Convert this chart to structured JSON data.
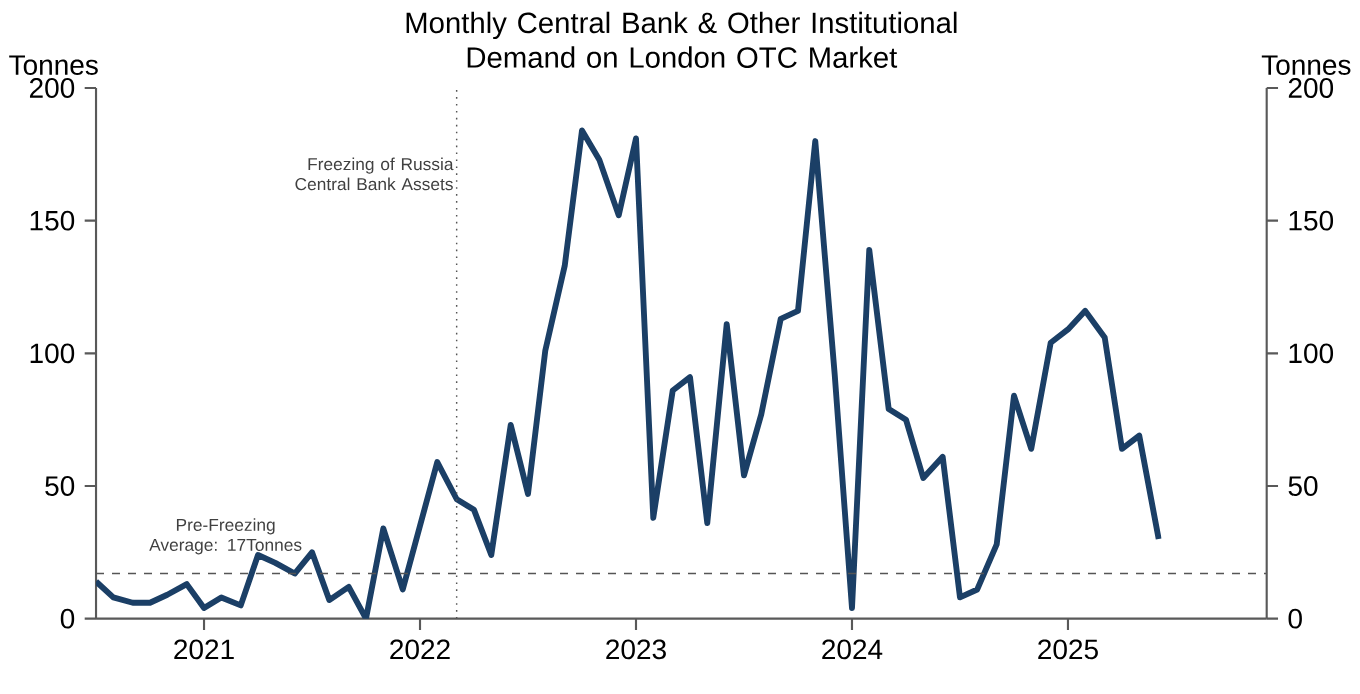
{
  "chart_data": {
    "type": "line",
    "title": "Monthly Central Bank & Other Institutional Demand on London OTC Market",
    "ylabel": "Tonnes",
    "y2label": "Tonnes",
    "x": [
      "2020-07",
      "2020-08",
      "2020-09",
      "2020-10",
      "2020-11",
      "2020-12",
      "2021-01",
      "2021-02",
      "2021-03",
      "2021-04",
      "2021-05",
      "2021-06",
      "2021-07",
      "2021-08",
      "2021-09",
      "2021-10",
      "2021-11",
      "2021-12",
      "2022-01",
      "2022-02",
      "2022-03",
      "2022-04",
      "2022-05",
      "2022-06",
      "2022-07",
      "2022-08",
      "2022-09",
      "2022-10",
      "2022-11",
      "2022-12",
      "2023-01",
      "2023-02",
      "2023-03",
      "2023-04",
      "2023-05",
      "2023-06",
      "2023-07",
      "2023-08",
      "2023-09",
      "2023-10",
      "2023-11",
      "2023-12",
      "2024-01",
      "2024-02",
      "2024-03",
      "2024-04",
      "2024-05",
      "2024-06",
      "2024-07",
      "2024-08",
      "2024-09",
      "2024-10",
      "2024-11",
      "2024-12",
      "2025-01",
      "2025-02",
      "2025-03",
      "2025-04",
      "2025-05",
      "2025-06"
    ],
    "series": [
      {
        "color": "#1b3f66",
        "values": [
          14,
          8,
          6,
          6,
          9,
          13,
          4,
          8,
          5,
          24,
          21,
          17,
          25,
          7,
          12,
          0,
          34,
          11,
          35,
          59,
          45,
          41,
          24,
          73,
          47,
          101,
          133,
          184,
          173,
          152,
          181,
          38,
          86,
          91,
          36,
          111,
          54,
          77,
          113,
          116,
          180,
          92,
          4,
          139,
          79,
          75,
          53,
          61,
          8,
          11,
          28,
          84,
          64,
          104,
          109,
          116,
          106,
          64,
          69,
          30
        ]
      }
    ],
    "xlim": [
      "2020-07",
      "2025-12"
    ],
    "xticks": [
      "2021",
      "2022",
      "2023",
      "2024",
      "2025"
    ],
    "ylim": [
      0,
      200
    ],
    "yticks": [
      0,
      50,
      100,
      150,
      200
    ],
    "y2lim": [
      0,
      200
    ],
    "y2ticks": [
      0,
      50,
      100,
      150,
      200
    ],
    "ref_lines": [
      {
        "axis": "x",
        "value": "2022-03",
        "label": "Freezing of Russia Central Bank Assets",
        "color": "#555555",
        "line_style": "dotted"
      },
      {
        "axis": "y",
        "value": 17,
        "label": "Pre-Freezing Average: 17Tonnes",
        "color": "#555555",
        "line_style": "dashed"
      }
    ],
    "grid": false,
    "marker": "none",
    "line_style": "solid"
  }
}
